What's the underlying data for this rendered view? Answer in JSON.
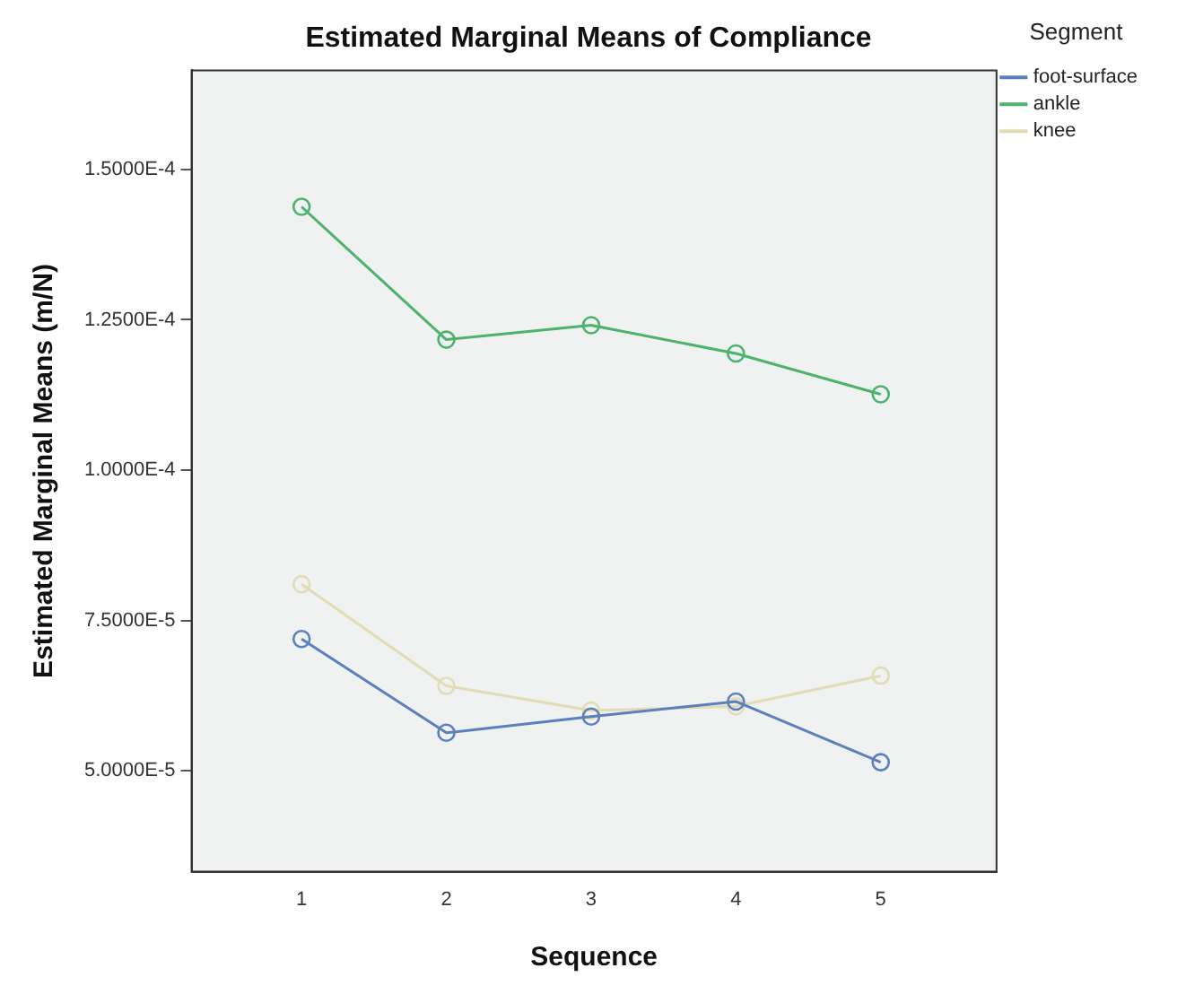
{
  "chart_data": {
    "type": "line",
    "title": "Estimated Marginal Means of Compliance",
    "xlabel": "Sequence",
    "ylabel": "Estimated Marginal Means (m/N)",
    "legend_title": "Segment",
    "legend": "top right",
    "marker": "circle",
    "line_style": "solid",
    "grid": false,
    "x": [
      1,
      2,
      3,
      4,
      5
    ],
    "xlim": [
      0.24,
      5.8
    ],
    "xticks": [
      1,
      2,
      3,
      4,
      5
    ],
    "ylim": [
      3.32e-05,
      0.0001665
    ],
    "yticks": [
      {
        "value": 5e-05,
        "label": "5.0000E-5"
      },
      {
        "value": 7.5e-05,
        "label": "7.5000E-5"
      },
      {
        "value": 0.0001,
        "label": "1.0000E-4"
      },
      {
        "value": 0.000125,
        "label": "1.2500E-4"
      },
      {
        "value": 0.00015,
        "label": "1.5000E-4"
      }
    ],
    "series": [
      {
        "name": "foot-surface",
        "color": "#5b80bd",
        "values": [
          7.19e-05,
          5.63e-05,
          5.9e-05,
          6.15e-05,
          5.14e-05
        ]
      },
      {
        "name": "ankle",
        "color": "#4cb26c",
        "values": [
          0.0001438,
          0.0001217,
          0.0001241,
          0.0001194,
          0.0001126
        ]
      },
      {
        "name": "knee",
        "color": "#e2dcb4",
        "values": [
          8.1e-05,
          6.41e-05,
          6e-05,
          6.07e-05,
          6.58e-05
        ]
      }
    ]
  }
}
